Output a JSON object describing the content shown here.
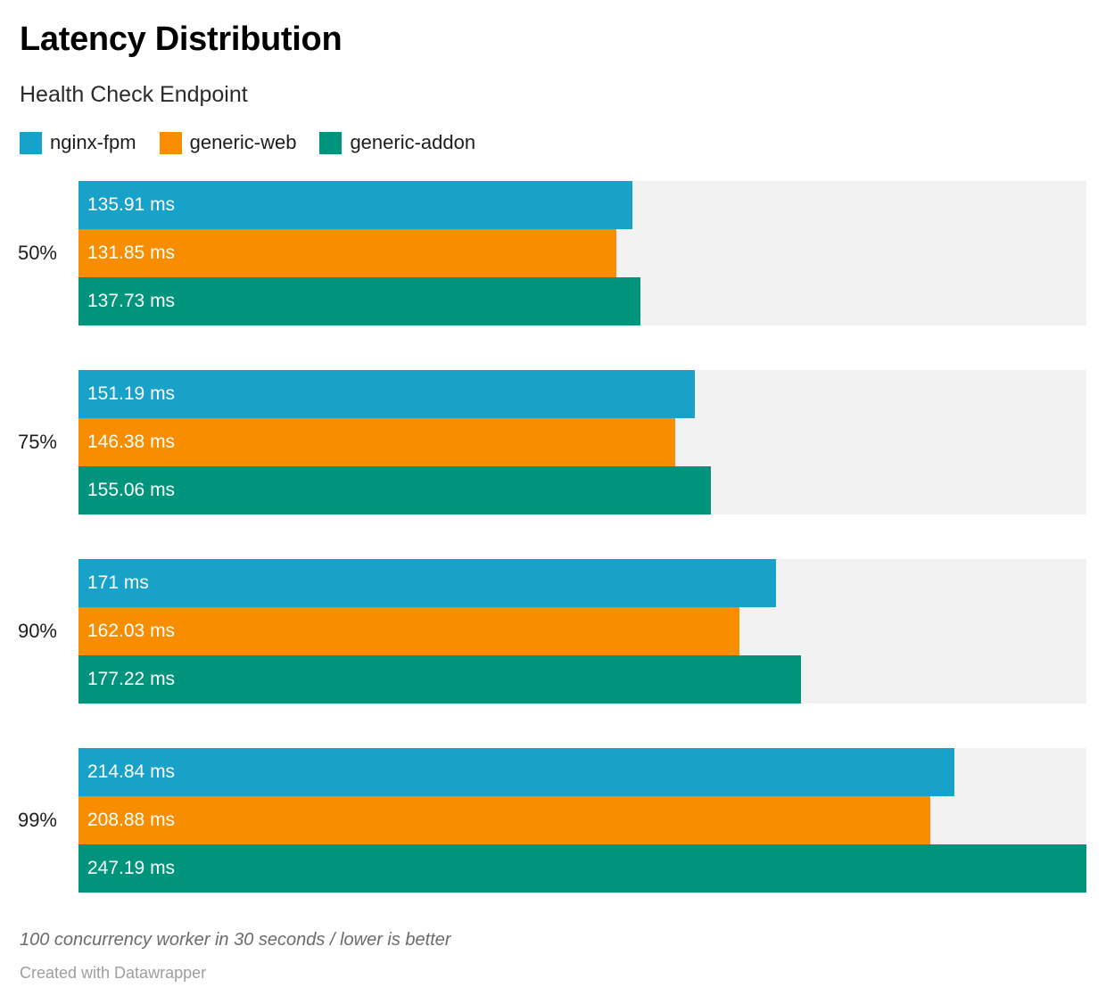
{
  "header": {
    "title": "Latency Distribution",
    "subtitle": "Health Check Endpoint"
  },
  "chart_data": {
    "type": "bar",
    "orientation": "horizontal",
    "title": "Latency Distribution",
    "subtitle": "Health Check Endpoint",
    "categories": [
      "50%",
      "75%",
      "90%",
      "99%"
    ],
    "series": [
      {
        "name": "nginx-fpm",
        "color": "#18a1c9",
        "values": [
          135.91,
          151.19,
          171,
          214.84
        ],
        "labels": [
          "135.91 ms",
          "151.19 ms",
          "171 ms",
          "214.84 ms"
        ]
      },
      {
        "name": "generic-web",
        "color": "#f98d00",
        "values": [
          131.85,
          146.38,
          162.03,
          208.88
        ],
        "labels": [
          "131.85 ms",
          "146.38 ms",
          "162.03 ms",
          "208.88 ms"
        ]
      },
      {
        "name": "generic-addon",
        "color": "#00947c",
        "values": [
          137.73,
          155.06,
          177.22,
          247.19
        ],
        "labels": [
          "137.73 ms",
          "155.06 ms",
          "177.22 ms",
          "247.19 ms"
        ]
      }
    ],
    "unit": "ms",
    "xlim": [
      0,
      247.19
    ],
    "legend_position": "top",
    "grid": false,
    "track_color": "#f2f2f2",
    "value_label_color": "#ffffff"
  },
  "footer": {
    "note": "100 concurrency worker in 30 seconds / lower is better",
    "attribution": "Created with Datawrapper"
  }
}
